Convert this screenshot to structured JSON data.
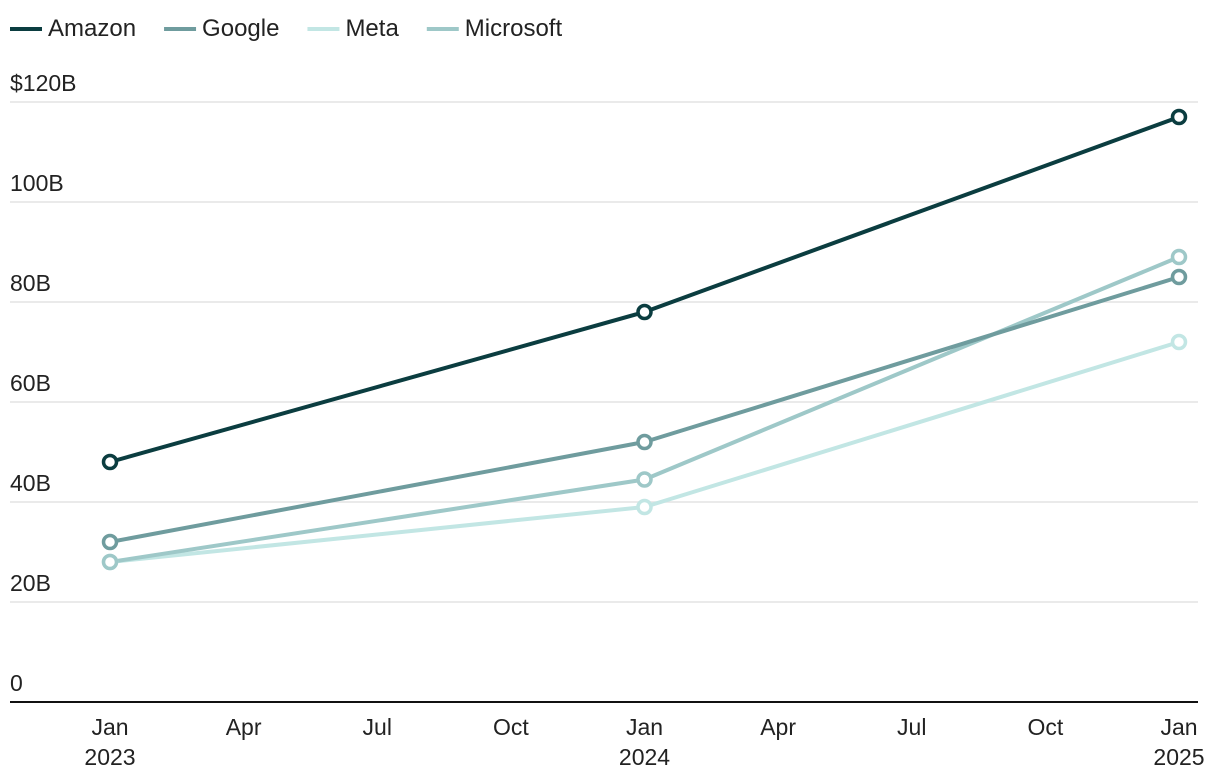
{
  "chart_data": {
    "type": "line",
    "title": "",
    "xlabel": "",
    "ylabel": "",
    "legend_position": "top-left",
    "grid": true,
    "ylim": [
      0,
      120
    ],
    "yticks": [
      {
        "value": 120,
        "label": "$120B"
      },
      {
        "value": 100,
        "label": "100B"
      },
      {
        "value": 80,
        "label": "80B"
      },
      {
        "value": 60,
        "label": "60B"
      },
      {
        "value": 40,
        "label": "40B"
      },
      {
        "value": 20,
        "label": "20B"
      },
      {
        "value": 0,
        "label": "0"
      }
    ],
    "xlim": [
      "2023-01",
      "2025-01"
    ],
    "xticks": [
      {
        "value": "2023-01",
        "label": "Jan",
        "sublabel": "2023"
      },
      {
        "value": "2023-04",
        "label": "Apr",
        "sublabel": ""
      },
      {
        "value": "2023-07",
        "label": "Jul",
        "sublabel": ""
      },
      {
        "value": "2023-10",
        "label": "Oct",
        "sublabel": ""
      },
      {
        "value": "2024-01",
        "label": "Jan",
        "sublabel": "2024"
      },
      {
        "value": "2024-04",
        "label": "Apr",
        "sublabel": ""
      },
      {
        "value": "2024-07",
        "label": "Jul",
        "sublabel": ""
      },
      {
        "value": "2024-10",
        "label": "Oct",
        "sublabel": ""
      },
      {
        "value": "2025-01",
        "label": "Jan",
        "sublabel": "2025"
      }
    ],
    "x": [
      "2023-01",
      "2024-01",
      "2025-01"
    ],
    "series": [
      {
        "name": "Amazon",
        "color": "#0b3d40",
        "values": [
          48,
          78,
          117
        ]
      },
      {
        "name": "Google",
        "color": "#6f9c9e",
        "values": [
          32,
          52,
          85
        ]
      },
      {
        "name": "Meta",
        "color": "#c2e6e4",
        "values": [
          28,
          39,
          72
        ]
      },
      {
        "name": "Microsoft",
        "color": "#9ec8c8",
        "values": [
          28,
          44.5,
          89
        ]
      }
    ]
  }
}
